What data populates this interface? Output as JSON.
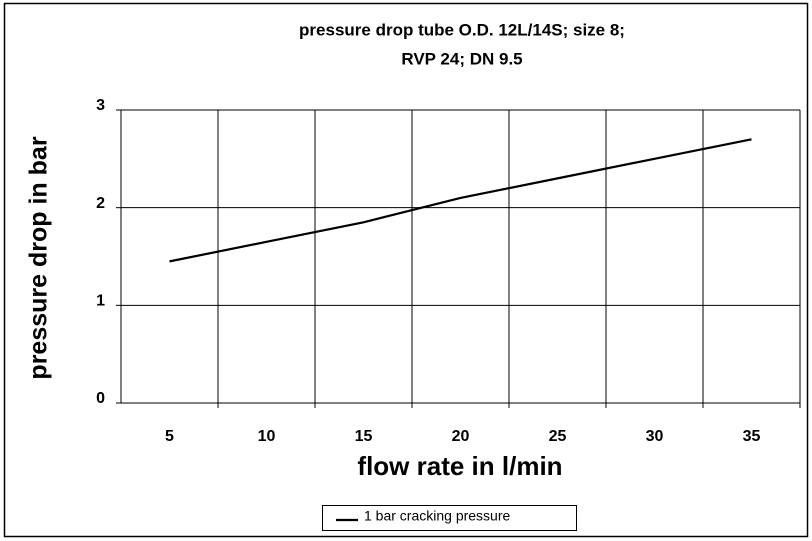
{
  "chart_data": {
    "type": "line",
    "title": [
      "pressure drop tube O.D. 12L/14S; size 8;",
      "RVP 24; DN 9.5"
    ],
    "x_label": "flow rate in l/min",
    "y_label": "pressure drop in bar",
    "categories": [
      "5",
      "10",
      "15",
      "20",
      "25",
      "30",
      "35"
    ],
    "series": [
      {
        "name": "1 bar cracking pressure",
        "color": "#000000",
        "values": [
          1.45,
          1.65,
          1.85,
          2.1,
          2.3,
          2.5,
          2.7
        ]
      }
    ],
    "ylim": [
      0,
      3
    ],
    "yticks": [
      0,
      1,
      2,
      3
    ],
    "grid": true,
    "legend": "bottom"
  }
}
